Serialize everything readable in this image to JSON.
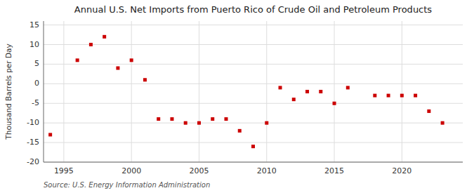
{
  "chart_data": {
    "type": "scatter",
    "title": "Annual U.S. Net Imports from Puerto Rico of Crude Oil and Petroleum Products",
    "y_label": "Thousand Barrels per Day",
    "source": "Source: U.S. Energy Information Administration",
    "x": [
      1994,
      1996,
      1997,
      1998,
      1999,
      2000,
      2001,
      2002,
      2003,
      2004,
      2005,
      2006,
      2007,
      2008,
      2009,
      2010,
      2011,
      2012,
      2013,
      2014,
      2015,
      2016,
      2018,
      2019,
      2020,
      2021,
      2022,
      2023
    ],
    "values": [
      -13,
      6,
      10,
      12,
      4,
      6,
      1,
      -9,
      -9,
      -10,
      -10,
      -9,
      -9,
      -12,
      -16,
      -10,
      -1,
      -4,
      -2,
      -2,
      -5,
      -1,
      -3,
      -3,
      -3,
      -3,
      -7,
      -10
    ],
    "color": "#cc0000",
    "marker": "square",
    "xlim": [
      1993.5,
      2024.5
    ],
    "ylim": [
      -20,
      16
    ],
    "xticks": [
      1995,
      2000,
      2005,
      2010,
      2015,
      2020
    ],
    "yticks": [
      -20,
      -15,
      -10,
      -5,
      0,
      5,
      10,
      15
    ],
    "grid": true
  }
}
